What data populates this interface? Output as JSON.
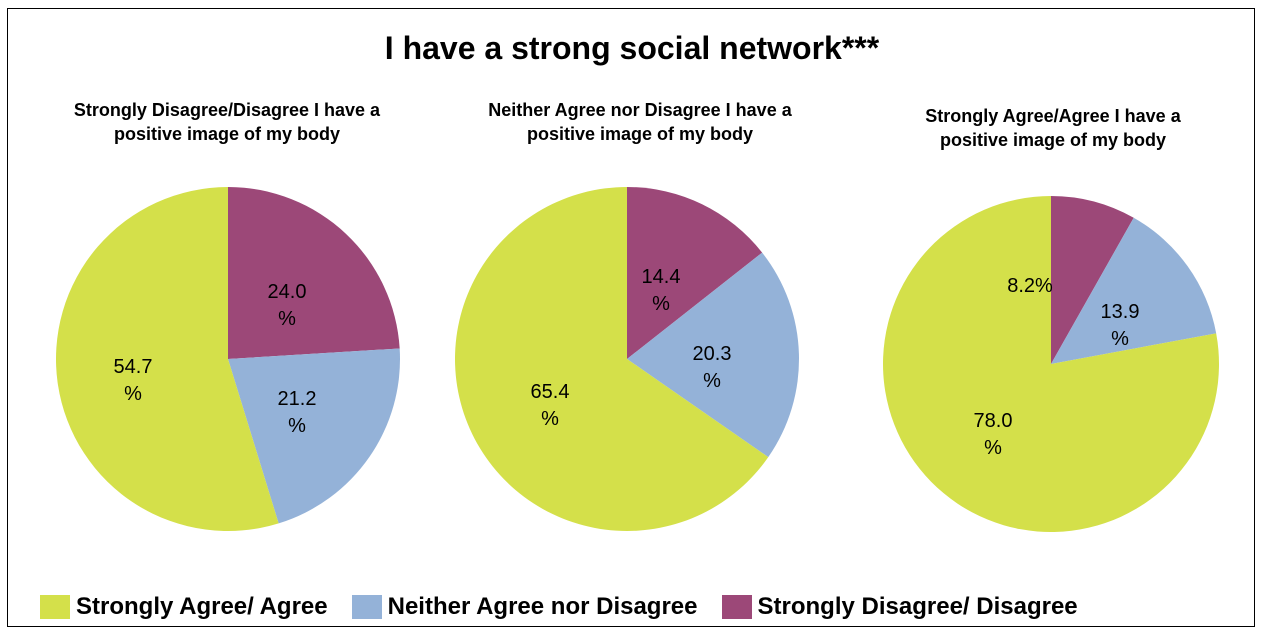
{
  "title": "I have a strong social network***",
  "colors": {
    "agree": "#d4e04a",
    "neither": "#94b2d8",
    "disagree": "#9c4878"
  },
  "legend": [
    {
      "label": "Strongly Agree/ Agree",
      "color_key": "agree"
    },
    {
      "label": "Neither Agree nor Disagree",
      "color_key": "neither"
    },
    {
      "label": "Strongly Disagree/ Disagree",
      "color_key": "disagree"
    }
  ],
  "chart_data": [
    {
      "type": "pie",
      "title": "Strongly Disagree/Disagree I have a positive image of my body",
      "categories": [
        "Strongly Disagree/ Disagree",
        "Neither Agree nor Disagree",
        "Strongly Agree/ Agree"
      ],
      "values": [
        24.0,
        21.2,
        54.7
      ],
      "labels": [
        [
          "24.0",
          "%"
        ],
        [
          "21.2",
          "%"
        ],
        [
          "54.7",
          "%"
        ]
      ]
    },
    {
      "type": "pie",
      "title": "Neither Agree nor Disagree I have a positive image of my body",
      "categories": [
        "Strongly Disagree/ Disagree",
        "Neither Agree nor Disagree",
        "Strongly Agree/ Agree"
      ],
      "values": [
        14.4,
        20.3,
        65.4
      ],
      "labels": [
        [
          "14.4",
          "%"
        ],
        [
          "20.3",
          "%"
        ],
        [
          "65.4",
          "%"
        ]
      ]
    },
    {
      "type": "pie",
      "title": "Strongly Agree/Agree I have a positive image of my body",
      "categories": [
        "Strongly Disagree/ Disagree",
        "Neither Agree nor Disagree",
        "Strongly Agree/ Agree"
      ],
      "values": [
        8.2,
        13.9,
        78.0
      ],
      "labels": [
        [
          "8.2%"
        ],
        [
          "13.9",
          "%"
        ],
        [
          "78.0",
          "%"
        ]
      ]
    }
  ]
}
